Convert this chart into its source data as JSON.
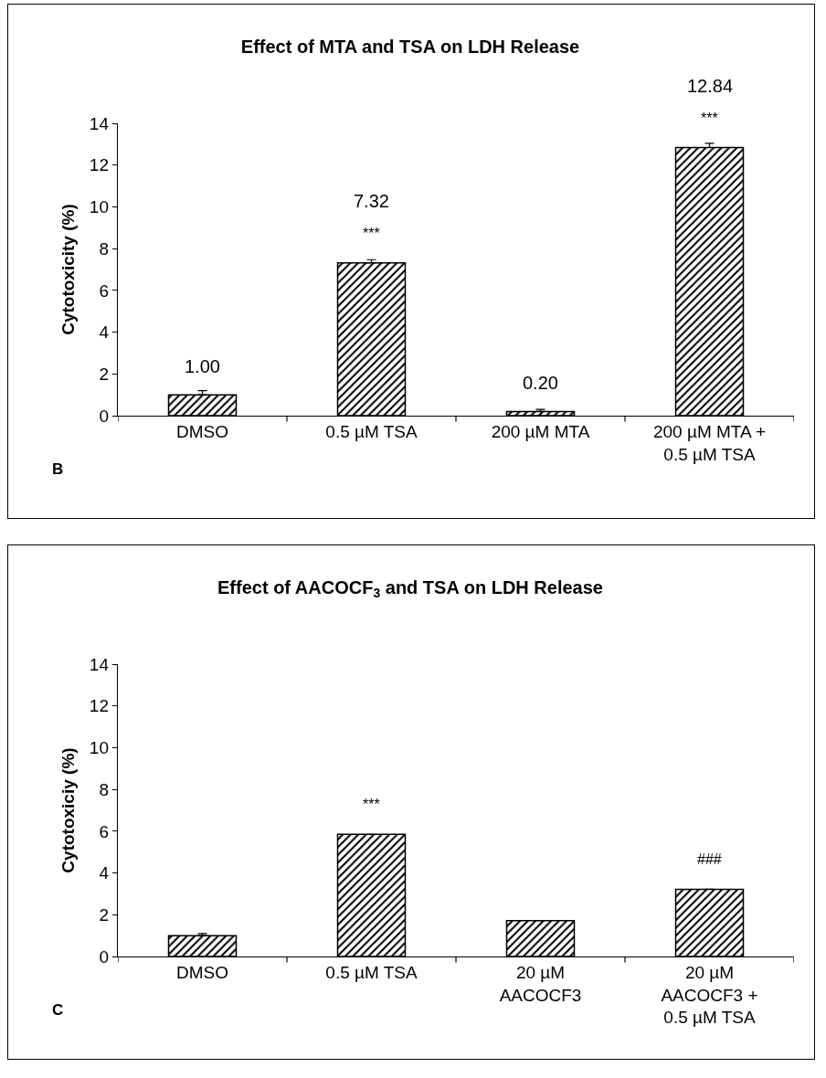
{
  "chart_data": [
    {
      "type": "bar",
      "title": "Effect of MTA and TSA on LDH Release",
      "ylabel": "Cytotoxicity (%)",
      "categories": [
        "DMSO",
        "0.5 µM TSA",
        "200 µM MTA",
        "200 µM MTA + 0.5 µM TSA"
      ],
      "values": [
        1.0,
        7.32,
        0.2,
        12.84
      ],
      "errors": [
        0.2,
        0.15,
        0.1,
        0.2
      ],
      "value_labels": [
        "1.00",
        "7.32",
        "0.20",
        "12.84"
      ],
      "color": "#000000",
      "ylim": [
        0,
        14
      ],
      "yticks": [
        0,
        2,
        4,
        6,
        8,
        10,
        12,
        14
      ],
      "annotations": [
        {
          "text": "***",
          "x": "0.5 µM TSA",
          "y": 7.32
        },
        {
          "text": "***",
          "x": "200 µM MTA + 0.5 µM TSA",
          "y": 12.84
        },
        "B"
      ]
    },
    {
      "type": "bar",
      "title": "Effect of AACOCF$_{3}$ and TSA on LDH Release",
      "ylabel": "Cytotoxiciy (%)",
      "categories": [
        "DMSO",
        "0.5 µM TSA",
        "20 µM AACOCF3",
        "20 µM AACOCF3 + 0.5 µM TSA"
      ],
      "values": [
        1.0,
        5.85,
        1.72,
        3.22
      ],
      "errors": [
        0.1,
        null,
        null,
        null
      ],
      "color": "#000000",
      "ylim": [
        0,
        14
      ],
      "yticks": [
        0,
        2,
        4,
        6,
        8,
        10,
        12,
        14
      ],
      "annotations": [
        {
          "text": "***",
          "x": "0.5 µM TSA",
          "y": 5.85
        },
        {
          "text": "###",
          "x": "20 µM AACOCF3 + 0.5 µM TSA",
          "y": 3.22
        },
        "C"
      ]
    }
  ]
}
